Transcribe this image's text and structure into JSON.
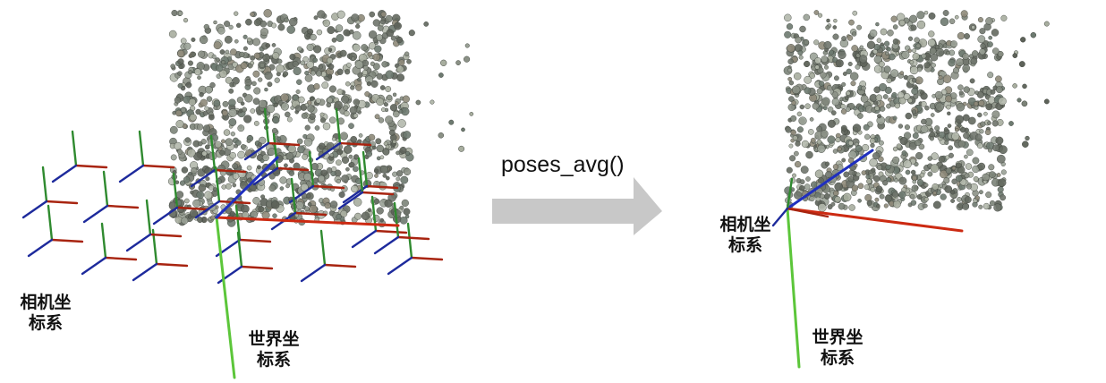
{
  "left_panel": {
    "camera_frames_label_line1": "相机坐",
    "camera_frames_label_line2": "标系",
    "world_frame_label_line1": "世界坐",
    "world_frame_label_line2": "标系"
  },
  "transform": {
    "function_label": "poses_avg()"
  },
  "right_panel": {
    "camera_frame_label_line1": "相机坐",
    "camera_frame_label_line2": "标系",
    "world_frame_label_line1": "世界坐",
    "world_frame_label_line2": "标系"
  },
  "colors": {
    "x_axis": "#cc2a12",
    "y_axis": "#5cc63a",
    "z_axis": "#1f2fbf",
    "cam_red": "#a82410",
    "cam_green": "#2f8a2f",
    "cam_blue": "#1d2a9c",
    "arrow": "#c8c8c8"
  }
}
